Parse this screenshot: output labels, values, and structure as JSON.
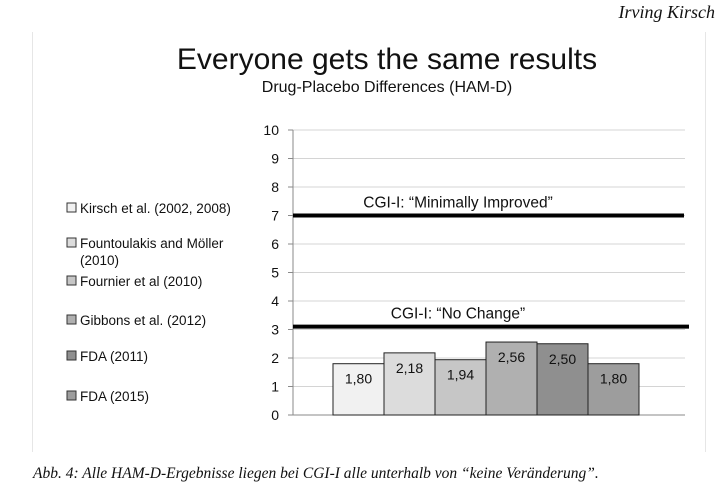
{
  "header": {
    "author": "Irving Kirsch"
  },
  "caption": "Abb. 4: Alle HAM-D-Ergebnisse liegen bei CGI-I alle unterhalb von “keine Veränderung”.",
  "chart_data": {
    "type": "bar",
    "title": "Everyone gets the same results",
    "subtitle": "Drug-Placebo Differences (HAM-D)",
    "ylim": [
      0,
      10
    ],
    "yticks": [
      "0",
      "1",
      "2",
      "3",
      "4",
      "5",
      "6",
      "7",
      "8",
      "9",
      "10"
    ],
    "grid": true,
    "legend_position": "left",
    "series": [
      {
        "name": "Kirsch et al. (2002, 2008)",
        "value": 1.8,
        "label": "1,80",
        "color": "#f1f1f1"
      },
      {
        "name": "Fountoulakis and Möller (2010)",
        "value": 2.18,
        "label": "2,18",
        "color": "#dcdcdc"
      },
      {
        "name": "Fournier et al (2010)",
        "value": 1.94,
        "label": "1,94",
        "color": "#c6c6c6"
      },
      {
        "name": "Gibbons et al. (2012)",
        "value": 2.56,
        "label": "2,56",
        "color": "#b0b0b0"
      },
      {
        "name": "FDA (2011)",
        "value": 2.5,
        "label": "2,50",
        "color": "#8f8f8f"
      },
      {
        "name": "FDA (2015)",
        "value": 1.8,
        "label": "1,80",
        "color": "#9d9d9d"
      }
    ],
    "reference_lines": [
      {
        "label": "CGI-I: “Minimally Improved”",
        "value": 7.0
      },
      {
        "label": "CGI-I: “No Change”",
        "value": 3.1
      }
    ]
  }
}
